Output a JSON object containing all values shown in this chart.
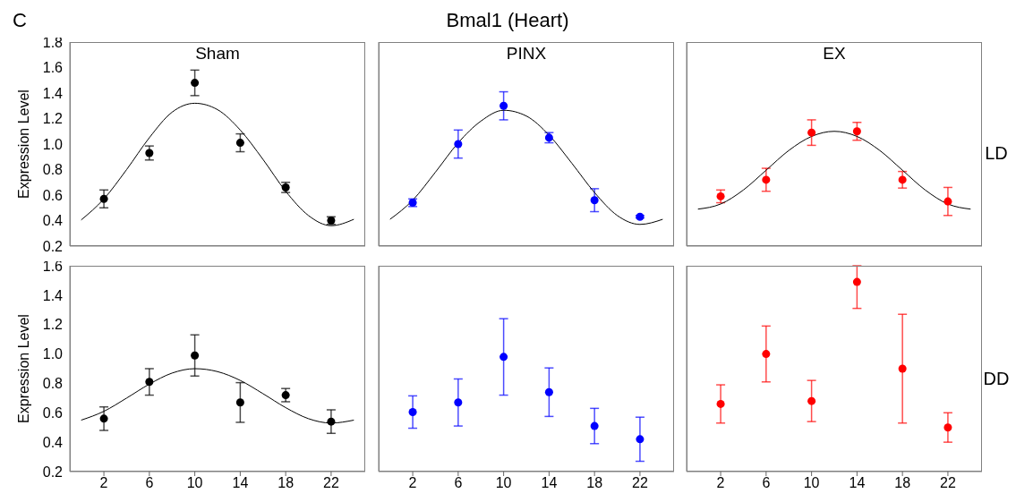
{
  "chart_data": [
    {
      "type": "scatter",
      "title": "Sham",
      "ylabel": "Expression Level",
      "annotations": [
        "C",
        "Bmal1 (Heart)"
      ],
      "x": [
        2,
        6,
        10,
        14,
        18,
        22
      ],
      "xlim": [
        -1,
        25
      ],
      "xticks": [
        2,
        6,
        10,
        14,
        18,
        22
      ],
      "ylim": [
        0.2,
        1.8
      ],
      "yticks": [
        0.2,
        0.4,
        0.6,
        0.8,
        {
          "value": 1,
          "label": "1.0"
        },
        1.2,
        1.4,
        1.6,
        1.8
      ],
      "tick_labels": "y",
      "marker": "circle",
      "series": [
        {
          "type": "scatter",
          "color": "#000000",
          "values": [
            0.57,
            0.93,
            1.48,
            1.01,
            0.66,
            0.4
          ],
          "errors": [
            0.07,
            0.055,
            0.1,
            0.07,
            0.04,
            0.03
          ]
        },
        {
          "type": "line",
          "color": "#000000",
          "marker": "none",
          "x": [
            0,
            2,
            4,
            6,
            8,
            10,
            12,
            14,
            16,
            18,
            20,
            22,
            24
          ],
          "values": [
            0.405,
            0.57,
            0.8,
            1.05,
            1.25,
            1.32,
            1.27,
            1.11,
            0.88,
            0.63,
            0.44,
            0.36,
            0.41
          ]
        }
      ]
    },
    {
      "type": "scatter",
      "title": "PINX",
      "x": [
        2,
        6,
        10,
        14,
        18,
        22
      ],
      "xlim": [
        -1,
        25
      ],
      "xticks": [
        2,
        6,
        10,
        14,
        18,
        22
      ],
      "ylim": [
        0.2,
        1.8
      ],
      "yticks": [
        0.2,
        0.4,
        0.6,
        0.8,
        1.0,
        1.2,
        1.4,
        1.6,
        1.8
      ],
      "tick_labels": false,
      "marker": "circle",
      "series": [
        {
          "type": "scatter",
          "color": "#0000ff",
          "values": [
            0.54,
            1.0,
            1.3,
            1.05,
            0.56,
            0.43
          ],
          "errors": [
            0.03,
            0.11,
            0.11,
            0.04,
            0.09,
            0.01
          ]
        },
        {
          "type": "line",
          "color": "#000000",
          "marker": "none",
          "x": [
            0,
            2,
            4,
            6,
            8,
            10,
            12,
            14,
            16,
            18,
            20,
            22,
            24
          ],
          "values": [
            0.41,
            0.56,
            0.78,
            1.01,
            1.18,
            1.265,
            1.22,
            1.07,
            0.85,
            0.62,
            0.44,
            0.37,
            0.41
          ]
        }
      ]
    },
    {
      "type": "scatter",
      "title": "EX",
      "annotations": [
        "LD"
      ],
      "x": [
        2,
        6,
        10,
        14,
        18,
        22
      ],
      "xlim": [
        -1,
        25
      ],
      "xticks": [
        2,
        6,
        10,
        14,
        18,
        22
      ],
      "ylim": [
        0.2,
        1.8
      ],
      "yticks": [
        0.2,
        0.4,
        0.6,
        0.8,
        1.0,
        1.2,
        1.4,
        1.6,
        1.8
      ],
      "tick_labels": false,
      "marker": "circle",
      "series": [
        {
          "type": "scatter",
          "color": "#ff0000",
          "values": [
            0.59,
            0.72,
            1.09,
            1.1,
            0.72,
            0.55
          ],
          "errors": [
            0.05,
            0.09,
            0.1,
            0.07,
            0.065,
            0.11
          ]
        },
        {
          "type": "line",
          "color": "#000000",
          "marker": "none",
          "x": [
            0,
            2,
            4,
            6,
            8,
            10,
            12,
            14,
            16,
            18,
            20,
            22,
            24
          ],
          "values": [
            0.49,
            0.53,
            0.64,
            0.795,
            0.95,
            1.06,
            1.1,
            1.06,
            0.95,
            0.795,
            0.64,
            0.53,
            0.49
          ]
        }
      ]
    },
    {
      "type": "scatter",
      "ylabel": "Expression Level",
      "x": [
        2,
        6,
        10,
        14,
        18,
        22
      ],
      "xlim": [
        -1,
        25
      ],
      "xticks": [
        2,
        6,
        10,
        14,
        18,
        22
      ],
      "ylim": [
        0.2,
        1.6
      ],
      "yticks": [
        0.2,
        0.4,
        0.6,
        0.8,
        {
          "value": 1,
          "label": "1.0"
        },
        1.2,
        1.4,
        1.6
      ],
      "marker": "circle",
      "series": [
        {
          "type": "scatter",
          "color": "#000000",
          "values": [
            0.56,
            0.81,
            0.99,
            0.67,
            0.72,
            0.54
          ],
          "errors": [
            0.08,
            0.09,
            0.14,
            0.135,
            0.045,
            0.08
          ]
        },
        {
          "type": "line",
          "color": "#000000",
          "marker": "none",
          "x": [
            0,
            2,
            4,
            6,
            8,
            10,
            12,
            14,
            16,
            18,
            20,
            22,
            24
          ],
          "values": [
            0.55,
            0.61,
            0.7,
            0.795,
            0.87,
            0.9,
            0.88,
            0.82,
            0.73,
            0.635,
            0.56,
            0.53,
            0.55
          ]
        }
      ]
    },
    {
      "type": "scatter",
      "x": [
        2,
        6,
        10,
        14,
        18,
        22
      ],
      "xlim": [
        -1,
        25
      ],
      "xticks": [
        2,
        6,
        10,
        14,
        18,
        22
      ],
      "ylim": [
        0.2,
        1.6
      ],
      "yticks": [
        0.2,
        0.4,
        0.6,
        0.8,
        1.0,
        1.2,
        1.4,
        1.6
      ],
      "tick_labels": "x",
      "marker": "circle",
      "series": [
        {
          "type": "scatter",
          "color": "#0000ff",
          "values": [
            0.605,
            0.67,
            0.98,
            0.74,
            0.51,
            0.42
          ],
          "errors": [
            0.11,
            0.16,
            0.26,
            0.165,
            0.12,
            0.15
          ]
        }
      ]
    },
    {
      "type": "scatter",
      "annotations": [
        "DD"
      ],
      "x": [
        2,
        6,
        10,
        14,
        18,
        22
      ],
      "xlim": [
        -1,
        25
      ],
      "xticks": [
        2,
        6,
        10,
        14,
        18,
        22
      ],
      "ylim": [
        0.2,
        1.6
      ],
      "yticks": [
        0.2,
        0.4,
        0.6,
        0.8,
        1.0,
        1.2,
        1.4,
        1.6
      ],
      "tick_labels": "x",
      "marker": "circle",
      "series": [
        {
          "type": "scatter",
          "color": "#ff0000",
          "values": [
            0.66,
            1.0,
            0.68,
            1.49,
            0.9,
            0.5
          ],
          "errors": [
            0.13,
            0.19,
            0.14,
            [
              1.31,
              1.6
            ],
            0.37,
            0.1
          ]
        }
      ]
    }
  ]
}
